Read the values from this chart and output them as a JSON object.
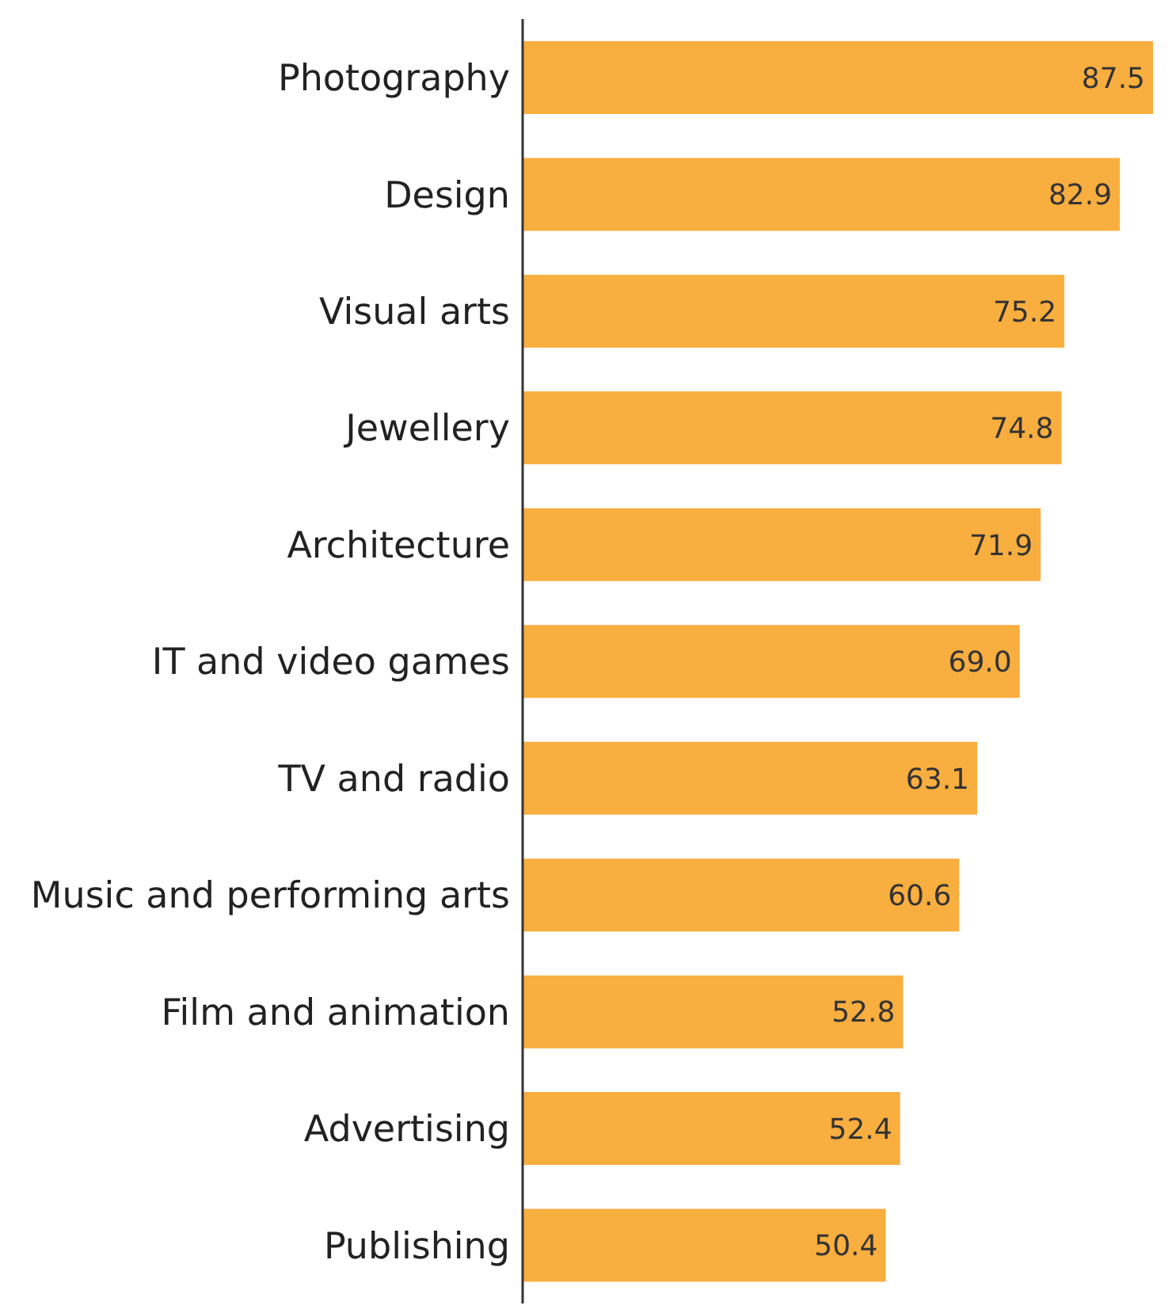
{
  "chart_data": {
    "type": "bar",
    "orientation": "horizontal",
    "categories": [
      "Photography",
      "Design",
      "Visual arts",
      "Jewellery",
      "Architecture",
      "IT and video games",
      "TV and radio",
      "Music and performing arts",
      "Film and animation",
      "Advertising",
      "Publishing"
    ],
    "values": [
      87.5,
      82.9,
      75.2,
      74.8,
      71.9,
      69.0,
      63.1,
      60.6,
      52.8,
      52.4,
      50.4
    ],
    "value_labels": [
      "87.5",
      "82.9",
      "75.2",
      "74.8",
      "71.9",
      "69.0",
      "63.1",
      "60.6",
      "52.8",
      "52.4",
      "50.4"
    ],
    "color": "#f9ae40"
  }
}
